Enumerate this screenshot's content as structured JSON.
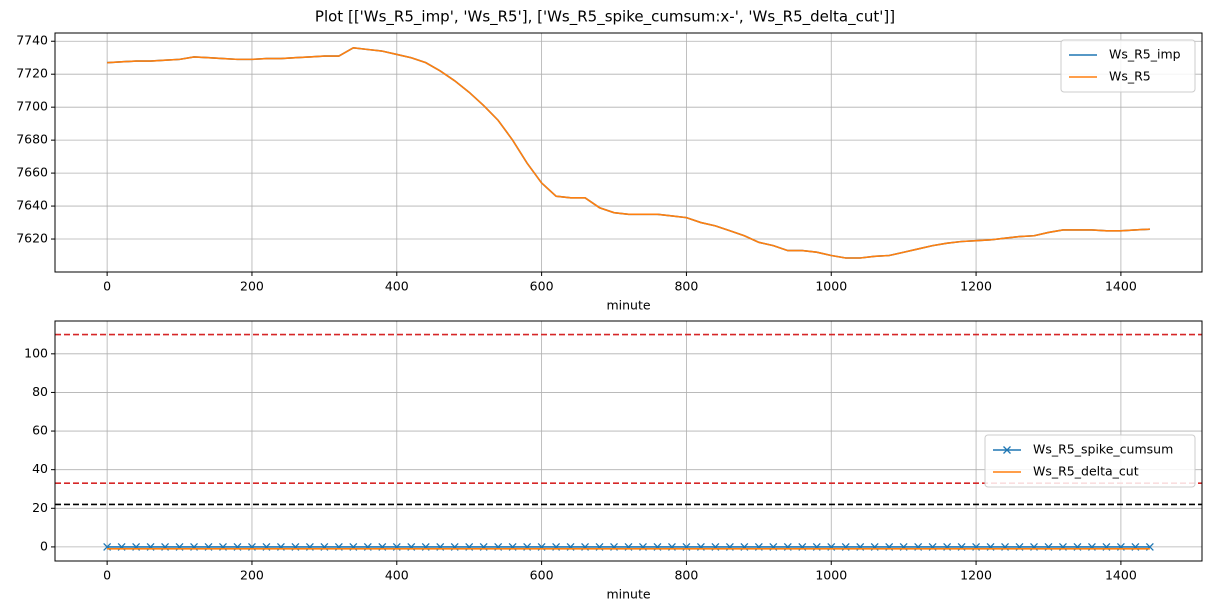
{
  "title": "Plot [['Ws_R5_imp', 'Ws_R5'], ['Ws_R5_spike_cumsum:x-', 'Ws_R5_delta_cut']]",
  "chart_data": [
    {
      "type": "line",
      "xlabel": "minute",
      "grid": true,
      "legend_loc": "upper right",
      "xlim": [
        -72,
        1512
      ],
      "ylim": [
        7600,
        7745
      ],
      "xticks": [
        0,
        200,
        400,
        600,
        800,
        1000,
        1200,
        1400
      ],
      "yticks": [
        7620,
        7640,
        7660,
        7680,
        7700,
        7720,
        7740
      ],
      "x": [
        0,
        20,
        40,
        60,
        80,
        100,
        120,
        140,
        160,
        180,
        200,
        220,
        240,
        260,
        280,
        300,
        320,
        340,
        360,
        380,
        400,
        420,
        440,
        460,
        480,
        500,
        520,
        540,
        560,
        580,
        600,
        620,
        640,
        660,
        680,
        700,
        720,
        740,
        760,
        780,
        800,
        820,
        840,
        860,
        880,
        900,
        920,
        940,
        960,
        980,
        1000,
        1020,
        1040,
        1060,
        1080,
        1100,
        1120,
        1140,
        1160,
        1180,
        1200,
        1220,
        1240,
        1260,
        1280,
        1300,
        1320,
        1340,
        1360,
        1380,
        1400,
        1420,
        1440
      ],
      "series": [
        {
          "name": "Ws_R5_imp",
          "color": "#1f77b4",
          "values": [
            7727,
            7727.5,
            7728,
            7728,
            7728.5,
            7729,
            7730.5,
            7730,
            7729.5,
            7729,
            7729,
            7729.5,
            7729.5,
            7730,
            7730.5,
            7731,
            7731,
            7736,
            7735,
            7734,
            7732,
            7730,
            7727,
            7722,
            7716,
            7709,
            7701,
            7692,
            7680,
            7666,
            7654,
            7646,
            7645,
            7645,
            7639,
            7636,
            7635,
            7635,
            7635,
            7634,
            7633,
            7630,
            7628,
            7625,
            7622,
            7618,
            7616,
            7613,
            7613,
            7612,
            7610,
            7608.5,
            7608.5,
            7609.5,
            7610,
            7612,
            7614,
            7616,
            7617.5,
            7618.5,
            7619,
            7619.5,
            7620.5,
            7621.5,
            7622,
            7624,
            7625.5,
            7625.5,
            7625.5,
            7625,
            7625,
            7625.5,
            7626
          ]
        },
        {
          "name": "Ws_R5",
          "color": "#ff7f0e",
          "values": [
            7727,
            7727.5,
            7728,
            7728,
            7728.5,
            7729,
            7730.5,
            7730,
            7729.5,
            7729,
            7729,
            7729.5,
            7729.5,
            7730,
            7730.5,
            7731,
            7731,
            7736,
            7735,
            7734,
            7732,
            7730,
            7727,
            7722,
            7716,
            7709,
            7701,
            7692,
            7680,
            7666,
            7654,
            7646,
            7645,
            7645,
            7639,
            7636,
            7635,
            7635,
            7635,
            7634,
            7633,
            7630,
            7628,
            7625,
            7622,
            7618,
            7616,
            7613,
            7613,
            7612,
            7610,
            7608.5,
            7608.5,
            7609.5,
            7610,
            7612,
            7614,
            7616,
            7617.5,
            7618.5,
            7619,
            7619.5,
            7620.5,
            7621.5,
            7622,
            7624,
            7625.5,
            7625.5,
            7625.5,
            7625,
            7625,
            7625.5,
            7626
          ]
        }
      ]
    },
    {
      "type": "line",
      "xlabel": "minute",
      "grid": true,
      "legend_loc": "center right",
      "xlim": [
        -72,
        1512
      ],
      "ylim": [
        -7.3,
        117
      ],
      "xticks": [
        0,
        200,
        400,
        600,
        800,
        1000,
        1200,
        1400
      ],
      "yticks": [
        0,
        20,
        40,
        60,
        80,
        100
      ],
      "hlines": [
        {
          "value": 110,
          "color": "#d62728"
        },
        {
          "value": 33,
          "color": "#d62728"
        },
        {
          "value": 22,
          "color": "#000000"
        }
      ],
      "x": [
        0,
        20,
        40,
        60,
        80,
        100,
        120,
        140,
        160,
        180,
        200,
        220,
        240,
        260,
        280,
        300,
        320,
        340,
        360,
        380,
        400,
        420,
        440,
        460,
        480,
        500,
        520,
        540,
        560,
        580,
        600,
        620,
        640,
        660,
        680,
        700,
        720,
        740,
        760,
        780,
        800,
        820,
        840,
        860,
        880,
        900,
        920,
        940,
        960,
        980,
        1000,
        1020,
        1040,
        1060,
        1080,
        1100,
        1120,
        1140,
        1160,
        1180,
        1200,
        1220,
        1240,
        1260,
        1280,
        1300,
        1320,
        1340,
        1360,
        1380,
        1400,
        1420,
        1440
      ],
      "series": [
        {
          "name": "Ws_R5_spike_cumsum",
          "color": "#1f77b4",
          "marker": "x",
          "values": [
            0,
            0,
            0,
            0,
            0,
            0,
            0,
            0,
            0,
            0,
            0,
            0,
            0,
            0,
            0,
            0,
            0,
            0,
            0,
            0,
            0,
            0,
            0,
            0,
            0,
            0,
            0,
            0,
            0,
            0,
            0,
            0,
            0,
            0,
            0,
            0,
            0,
            0,
            0,
            0,
            0,
            0,
            0,
            0,
            0,
            0,
            0,
            0,
            0,
            0,
            0,
            0,
            0,
            0,
            0,
            0,
            0,
            0,
            0,
            0,
            0,
            0,
            0,
            0,
            0,
            0,
            0,
            0,
            0,
            0,
            0,
            0,
            0
          ]
        },
        {
          "name": "Ws_R5_delta_cut",
          "color": "#ff7f0e",
          "values": [
            -1,
            -1,
            -1,
            -1,
            -1,
            -1,
            -1,
            -1,
            -1,
            -1,
            -1,
            -1,
            -1,
            -1,
            -1,
            -1,
            -1,
            -1,
            -1,
            -1,
            -1,
            -1,
            -1,
            -1,
            -1,
            -1,
            -1,
            -1,
            -1,
            -1,
            -1,
            -1,
            -1,
            -1,
            -1,
            -1,
            -1,
            -1,
            -1,
            -1,
            -1,
            -1,
            -1,
            -1,
            -1,
            -1,
            -1,
            -1,
            -1,
            -1,
            -1,
            -1,
            -1,
            -1,
            -1,
            -1,
            -1,
            -1,
            -1,
            -1,
            -1,
            -1,
            -1,
            -1,
            -1,
            -1,
            -1,
            -1,
            -1,
            -1,
            -1,
            -1,
            -1
          ]
        }
      ]
    }
  ]
}
